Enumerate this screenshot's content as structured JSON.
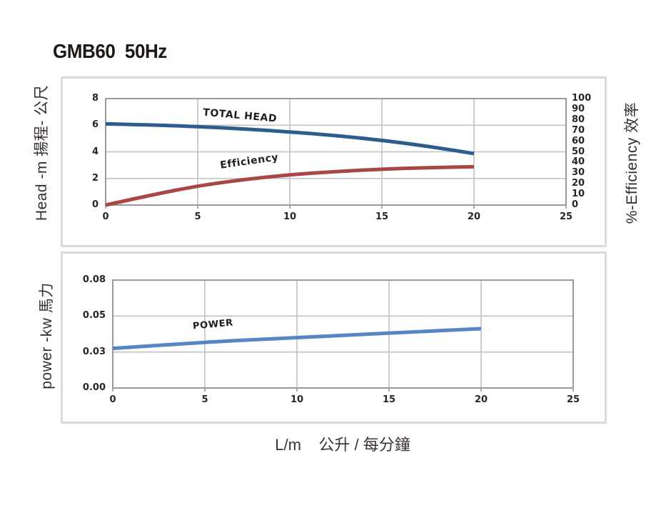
{
  "title": "GMB60  50Hz",
  "xlabel_bottom": "L/m    公升 / 每分鐘",
  "chart_data": [
    {
      "type": "line",
      "ylabel_left": "Head -m  揚程- 公尺",
      "ylabel_right": "%-Efficiency 效率",
      "grid": true,
      "x_axis": {
        "range": [
          0,
          25
        ],
        "ticks": [
          {
            "value": 0,
            "label": "0"
          },
          {
            "value": 5,
            "label": "5"
          },
          {
            "value": 10,
            "label": "10"
          },
          {
            "value": 15,
            "label": "15"
          },
          {
            "value": 20,
            "label": "20"
          },
          {
            "value": 25,
            "label": "25"
          }
        ]
      },
      "left_axis": {
        "range": [
          0,
          8
        ],
        "ticks": [
          {
            "value": 8,
            "label": "8"
          },
          {
            "value": 6,
            "label": "6"
          },
          {
            "value": 4,
            "label": "4"
          },
          {
            "value": 2,
            "label": "2"
          },
          {
            "value": 0,
            "label": "0"
          }
        ]
      },
      "right_axis": {
        "range": [
          0,
          100
        ],
        "ticks": [
          {
            "value": 100,
            "label": "100"
          },
          {
            "value": 90,
            "label": "90"
          },
          {
            "value": 80,
            "label": "80"
          },
          {
            "value": 70,
            "label": "70"
          },
          {
            "value": 60,
            "label": "60"
          },
          {
            "value": 50,
            "label": "50"
          },
          {
            "value": 40,
            "label": "40"
          },
          {
            "value": 30,
            "label": "30"
          },
          {
            "value": 20,
            "label": "20"
          },
          {
            "value": 10,
            "label": "10"
          },
          {
            "value": 0,
            "label": "0"
          }
        ]
      },
      "series": [
        {
          "name": "TOTAL HEAD",
          "axis": "left",
          "color": "#2e5c8f",
          "x": [
            0,
            2.5,
            5,
            7.5,
            10,
            12.5,
            15,
            17.5,
            20
          ],
          "y": [
            6.1,
            6.02,
            5.9,
            5.72,
            5.5,
            5.22,
            4.87,
            4.42,
            3.87
          ]
        },
        {
          "name": "Efficiency",
          "axis": "right",
          "color": "#a84743",
          "x": [
            0,
            2.5,
            5,
            7.5,
            10,
            12.5,
            15,
            17.5,
            20
          ],
          "y": [
            0,
            9.5,
            18,
            24,
            28.5,
            31.5,
            33.8,
            35.2,
            36
          ]
        }
      ],
      "annotations": [
        {
          "text": "TOTAL HEAD"
        },
        {
          "text": "Efficiency"
        }
      ]
    },
    {
      "type": "line",
      "ylabel_left": "power -kw  馬力",
      "grid": true,
      "x_axis": {
        "range": [
          0,
          25
        ],
        "ticks": [
          {
            "value": 0,
            "label": "0"
          },
          {
            "value": 5,
            "label": "5"
          },
          {
            "value": 10,
            "label": "10"
          },
          {
            "value": 15,
            "label": "15"
          },
          {
            "value": 20,
            "label": "20"
          },
          {
            "value": 25,
            "label": "25"
          }
        ]
      },
      "left_axis": {
        "range": [
          0,
          0.08
        ],
        "ticks": [
          {
            "value": 0.08,
            "label": "0.08"
          },
          {
            "value": 0.05,
            "label": "0.05"
          },
          {
            "value": 0.03,
            "label": "0.03"
          },
          {
            "value": 0.0,
            "label": "0.00"
          }
        ]
      },
      "series": [
        {
          "name": "POWER",
          "axis": "left",
          "color": "#5585c2",
          "x": [
            0,
            5,
            10,
            15,
            20
          ],
          "y": [
            0.032,
            0.0355,
            0.038,
            0.0405,
            0.043
          ]
        }
      ],
      "annotations": [
        {
          "text": "POWER"
        }
      ]
    }
  ]
}
